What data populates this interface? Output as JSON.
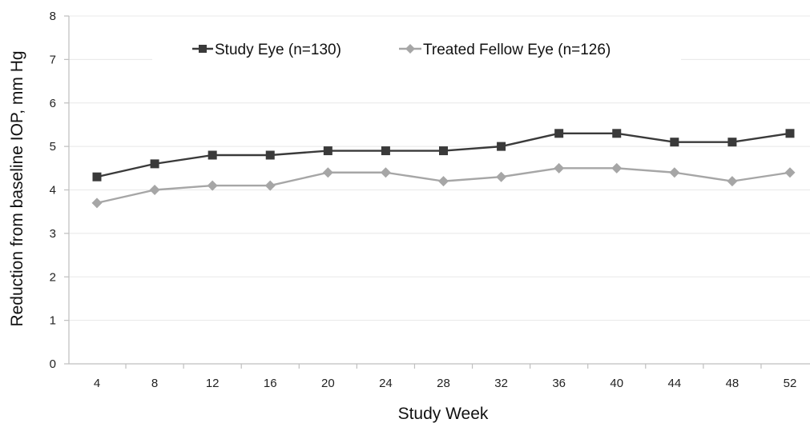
{
  "chart_data": {
    "type": "line",
    "title": "",
    "xlabel": "Study Week",
    "ylabel": "Reduction from baseline IOP, mm Hg",
    "x": [
      4,
      8,
      12,
      16,
      20,
      24,
      28,
      32,
      36,
      40,
      44,
      48,
      52
    ],
    "x_tick_labels": [
      "4",
      "8",
      "12",
      "16",
      "20",
      "24",
      "28",
      "32",
      "36",
      "40",
      "44",
      "48",
      "52"
    ],
    "ylim": [
      0,
      8
    ],
    "y_tick_labels": [
      "0",
      "1",
      "2",
      "3",
      "4",
      "5",
      "6",
      "7",
      "8"
    ],
    "grid": "horizontal",
    "legend_position": "top",
    "series": [
      {
        "name": "Study Eye (n=130)",
        "marker": "square",
        "color": "#3a3a3a",
        "values": [
          4.3,
          4.6,
          4.8,
          4.8,
          4.9,
          4.9,
          4.9,
          5.0,
          5.3,
          5.3,
          5.1,
          5.1,
          5.3
        ]
      },
      {
        "name": "Treated Fellow Eye (n=126)",
        "marker": "diamond",
        "color": "#a6a6a6",
        "values": [
          3.7,
          4.0,
          4.1,
          4.1,
          4.4,
          4.4,
          4.2,
          4.3,
          4.5,
          4.5,
          4.4,
          4.2,
          4.4
        ]
      }
    ]
  }
}
